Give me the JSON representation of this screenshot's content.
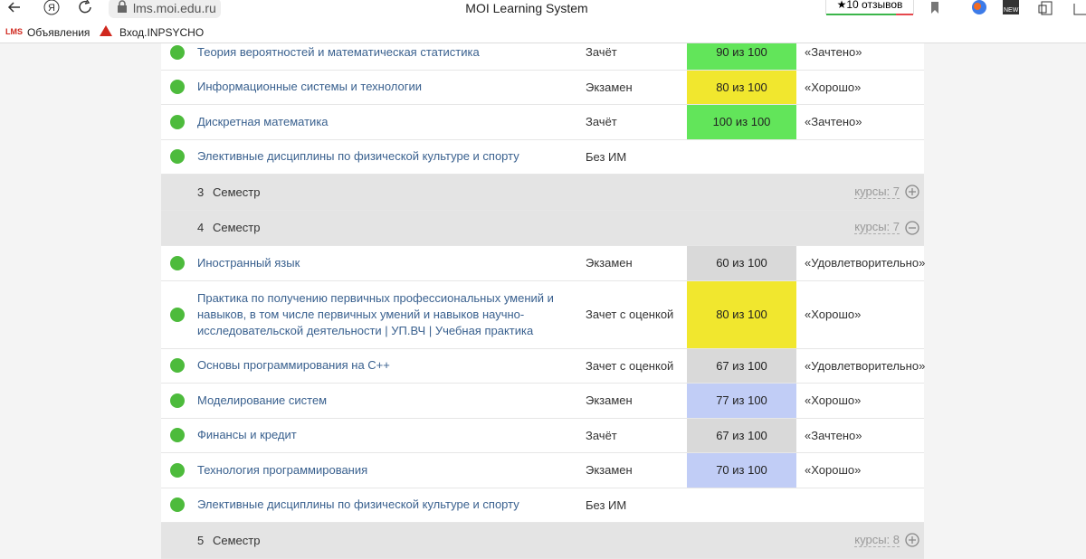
{
  "browser": {
    "url": "lms.moi.edu.ru",
    "page_title": "MOI Learning System",
    "reviews": "10 отзывов"
  },
  "bookmarks": {
    "icon": "LMS",
    "items": [
      "Объявления",
      "Вход.INPSYCHO"
    ]
  },
  "table": {
    "top_rows": [
      {
        "name": "Теория вероятностей и математическая статистика",
        "control": "Зачёт",
        "score": "90 из 100",
        "color": "#62e55a",
        "result": "«Зачтено»"
      },
      {
        "name": "Информационные системы и технологии",
        "control": "Экзамен",
        "score": "80 из 100",
        "color": "#f1e72e",
        "result": "«Хорошо»"
      },
      {
        "name": "Дискретная математика",
        "control": "Зачёт",
        "score": "100 из 100",
        "color": "#62e55a",
        "result": "«Зачтено»"
      },
      {
        "name": "Элективные дисциплины по физической культуре и спорту",
        "control": "Без ИМ"
      }
    ],
    "semesters": [
      {
        "number": "3",
        "label": "Семестр",
        "courses": "курсы: 7",
        "rows": []
      },
      {
        "number": "4",
        "label": "Семестр",
        "courses": "курсы: 7",
        "rows": [
          {
            "name": "Иностранный язык",
            "control": "Экзамен",
            "score": "60 из 100",
            "color": "#d9d9d9",
            "result": "«Удовлетворительно»"
          },
          {
            "name": "Практика по получению первичных профессиональных умений и навыков, в том числе первичных умений и навыков научно-исследовательской деятельности | УП.ВЧ | Учебная практика",
            "control": "Зачет с оценкой",
            "score": "80 из 100",
            "color": "#f1e72e",
            "result": "«Хорошо»"
          },
          {
            "name": "Основы программирования на С++",
            "control": "Зачет с оценкой",
            "score": "67 из 100",
            "color": "#d9d9d9",
            "result": "«Удовлетворительно»"
          },
          {
            "name": "Моделирование систем",
            "control": "Экзамен",
            "score": "77 из 100",
            "color": "#c1cdf6",
            "result": "«Хорошо»"
          },
          {
            "name": "Финансы и кредит",
            "control": "Зачёт",
            "score": "67 из 100",
            "color": "#d9d9d9",
            "result": "«Зачтено»"
          },
          {
            "name": "Технология программирования",
            "control": "Экзамен",
            "score": "70 из 100",
            "color": "#c1cdf6",
            "result": "«Хорошо»"
          },
          {
            "name": "Элективные дисциплины по физической культуре и спорту",
            "control": "Без ИМ"
          }
        ]
      },
      {
        "number": "5",
        "label": "Семестр",
        "courses": "курсы: 8",
        "rows": []
      }
    ]
  }
}
